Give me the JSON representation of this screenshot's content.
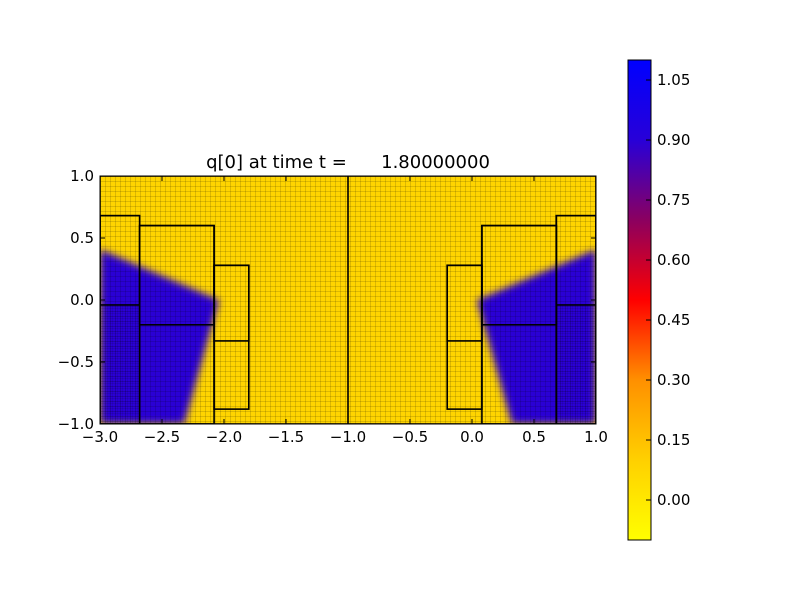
{
  "chart_data": {
    "type": "heatmap",
    "title": "q[0] at time t =      1.80000000",
    "xlabel": "",
    "ylabel": "",
    "xlim": [
      -3.0,
      1.0
    ],
    "ylim": [
      -1.0,
      1.0
    ],
    "x_ticks": [
      -3.0,
      -2.5,
      -2.0,
      -1.5,
      -1.0,
      -0.5,
      0.0,
      0.5,
      1.0
    ],
    "x_tick_labels": [
      "−3.0",
      "−2.5",
      "−2.0",
      "−1.5",
      "−1.0",
      "−0.5",
      "0.0",
      "0.5",
      "1.0"
    ],
    "y_ticks": [
      1.0,
      0.5,
      0.0,
      -0.5,
      -1.0
    ],
    "y_tick_labels": [
      "1.0",
      "0.5",
      "0.0",
      "−0.5",
      "−1.0"
    ],
    "grid": false,
    "colorbar": {
      "placement": "right",
      "vmin": -0.1,
      "vmax": 1.1,
      "ticks": [
        1.05,
        0.9,
        0.75,
        0.6,
        0.45,
        0.3,
        0.15,
        0.0
      ],
      "tick_labels": [
        "1.05",
        "0.90",
        "0.75",
        "0.60",
        "0.45",
        "0.30",
        "0.15",
        "0.00"
      ],
      "colors": [
        "#ffff00",
        "#ffd000",
        "#ff9000",
        "#ff0000",
        "#8b0060",
        "#2800d8",
        "#0000ff"
      ]
    },
    "background_value": 0.0,
    "high_value": 1.0,
    "colors": {
      "low": "#ffd400",
      "high": "#2a00d4",
      "grid_line": "#000000"
    },
    "patches": [
      {
        "x": [
          -3.0,
          1.0
        ],
        "y": [
          -1.0,
          1.0
        ]
      },
      {
        "x": [
          -1.0,
          -1.0
        ],
        "y": [
          -1.0,
          1.0
        ]
      },
      {
        "x": [
          -3.0,
          -2.68
        ],
        "y": [
          -1.0,
          0.68
        ]
      },
      {
        "x": [
          -3.0,
          -2.68
        ],
        "y": [
          -0.04,
          0.68
        ]
      },
      {
        "x": [
          -2.68,
          -2.08
        ],
        "y": [
          -1.0,
          0.6
        ]
      },
      {
        "x": [
          -2.68,
          -2.08
        ],
        "y": [
          -0.2,
          0.6
        ]
      },
      {
        "x": [
          -2.08,
          -1.8
        ],
        "y": [
          -0.88,
          0.28
        ]
      },
      {
        "x": [
          -2.08,
          -1.8
        ],
        "y": [
          -0.33,
          0.28
        ]
      },
      {
        "x": [
          -0.2,
          0.08
        ],
        "y": [
          -0.88,
          0.28
        ]
      },
      {
        "x": [
          -0.2,
          0.08
        ],
        "y": [
          -0.33,
          0.28
        ]
      },
      {
        "x": [
          0.08,
          0.68
        ],
        "y": [
          -1.0,
          0.6
        ]
      },
      {
        "x": [
          0.08,
          0.68
        ],
        "y": [
          -0.2,
          0.6
        ]
      },
      {
        "x": [
          0.68,
          1.0
        ],
        "y": [
          -1.0,
          0.68
        ]
      },
      {
        "x": [
          0.68,
          1.0
        ],
        "y": [
          -0.04,
          0.68
        ]
      }
    ],
    "high_regions": [
      [
        [
          -3.0,
          -1.0
        ],
        [
          -3.0,
          0.41
        ],
        [
          -2.04,
          0.0
        ],
        [
          -2.32,
          -1.0
        ]
      ],
      [
        [
          1.0,
          -1.0
        ],
        [
          1.0,
          0.41
        ],
        [
          0.04,
          0.0
        ],
        [
          0.32,
          -1.0
        ]
      ]
    ]
  }
}
